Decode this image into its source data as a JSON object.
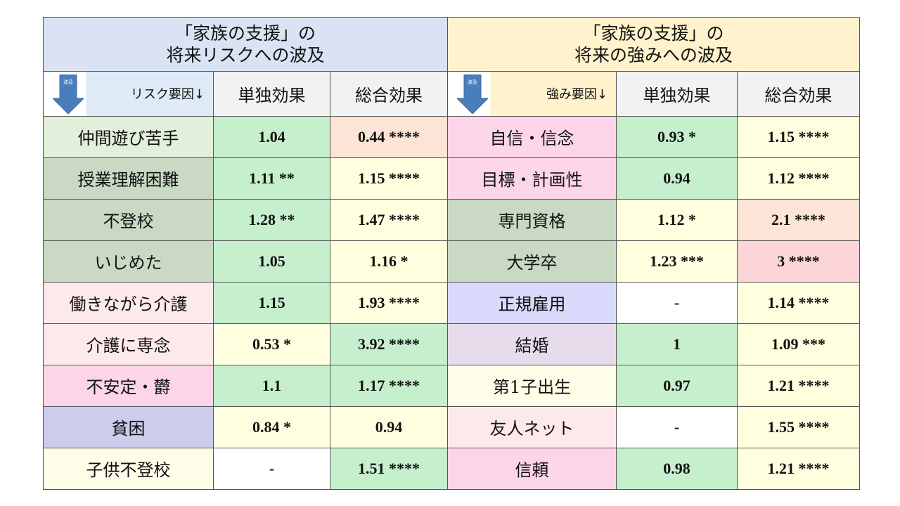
{
  "headers": {
    "left_title_line1": "「家族の支援」の",
    "left_title_line2": "将来リスクへの波及",
    "right_title_line1": "「家族の支援」の",
    "right_title_line2": "将来の強みへの波及",
    "left_factor_label": "リスク要因↓",
    "right_factor_label": "強み要因↓",
    "arrow_text": "波及",
    "single_effect": "単独効果",
    "total_effect": "総合効果"
  },
  "colors": {
    "left_title_bg": "#dae3f3",
    "right_title_bg": "#fff2cc",
    "left_factor_header_bg": "#deebf7",
    "right_factor_header_bg": "#fff2cc",
    "arrow": "#4a7ebb"
  },
  "rows": [
    {
      "left": {
        "name": "仲間遊び苦手",
        "name_bg": "#e2efda",
        "single": "1.04",
        "single_bg": "#c6efce",
        "total": "0.44 ****",
        "total_bg": "#fce4d6"
      },
      "right": {
        "name": "自信・信念",
        "name_bg": "#fcd5e8",
        "single": "0.93 *",
        "single_bg": "#c6efce",
        "total": "1.15 ****",
        "total_bg": "#ffffe0"
      }
    },
    {
      "left": {
        "name": "授業理解困難",
        "name_bg": "#c9d9c3",
        "single": "1.11 **",
        "single_bg": "#c6efce",
        "total": "1.15 ****",
        "total_bg": "#ffffe0"
      },
      "right": {
        "name": "目標・計画性",
        "name_bg": "#fcd5e8",
        "single": "0.94",
        "single_bg": "#c6efce",
        "total": "1.12 ****",
        "total_bg": "#ffffe0"
      }
    },
    {
      "left": {
        "name": "不登校",
        "name_bg": "#c9d9c3",
        "single": "1.28 **",
        "single_bg": "#c6efce",
        "total": "1.47 ****",
        "total_bg": "#ffffe0"
      },
      "right": {
        "name": "専門資格",
        "name_bg": "#c9d9c3",
        "single": "1.12 *",
        "single_bg": "#ffffe0",
        "total": "2.1 ****",
        "total_bg": "#fce4d6"
      }
    },
    {
      "left": {
        "name": "いじめた",
        "name_bg": "#c9d9c3",
        "single": "1.05",
        "single_bg": "#c6efce",
        "total": "1.16 *",
        "total_bg": "#ffffe0"
      },
      "right": {
        "name": "大学卒",
        "name_bg": "#c9d9c3",
        "single": "1.23 ***",
        "single_bg": "#ffffe0",
        "total": "3 ****",
        "total_bg": "#fcd5d9"
      }
    },
    {
      "left": {
        "name": "働きながら介護",
        "name_bg": "#fde9ec",
        "single": "1.15",
        "single_bg": "#c6efce",
        "total": "1.93 ****",
        "total_bg": "#ffffe0"
      },
      "right": {
        "name": "正規雇用",
        "name_bg": "#d9d9fb",
        "single": "-",
        "single_bg": "#ffffff",
        "total": "1.14 ****",
        "total_bg": "#ffffe0"
      }
    },
    {
      "left": {
        "name": "介護に専念",
        "name_bg": "#fde9ec",
        "single": "0.53 *",
        "single_bg": "#ffffe0",
        "total": "3.92 ****",
        "total_bg": "#c6efce"
      },
      "right": {
        "name": "結婚",
        "name_bg": "#e6dcec",
        "single": "1",
        "single_bg": "#c6efce",
        "total": "1.09 ***",
        "total_bg": "#ffffe0"
      }
    },
    {
      "left": {
        "name": "不安定・欝",
        "name_bg": "#fcd5e8",
        "single": "1.1",
        "single_bg": "#c6efce",
        "total": "1.17 ****",
        "total_bg": "#c6efce"
      },
      "right": {
        "name": "第1子出生",
        "name_bg": "#fdfde8",
        "single": "0.97",
        "single_bg": "#c6efce",
        "total": "1.21 ****",
        "total_bg": "#ffffe0"
      }
    },
    {
      "left": {
        "name": "貧困",
        "name_bg": "#ccccec",
        "single": "0.84 *",
        "single_bg": "#ffffe0",
        "total": "0.94",
        "total_bg": "#ffffe0"
      },
      "right": {
        "name": "友人ネット",
        "name_bg": "#fde9ec",
        "single": "-",
        "single_bg": "#ffffff",
        "total": "1.55 ****",
        "total_bg": "#ffffe0"
      }
    },
    {
      "left": {
        "name": "子供不登校",
        "name_bg": "#fdfde8",
        "single": "-",
        "single_bg": "#ffffff",
        "total": "1.51 ****",
        "total_bg": "#c6efce"
      },
      "right": {
        "name": "信頼",
        "name_bg": "#fcd5e8",
        "single": "0.98",
        "single_bg": "#c6efce",
        "total": "1.21 ****",
        "total_bg": "#ffffe0"
      }
    }
  ]
}
